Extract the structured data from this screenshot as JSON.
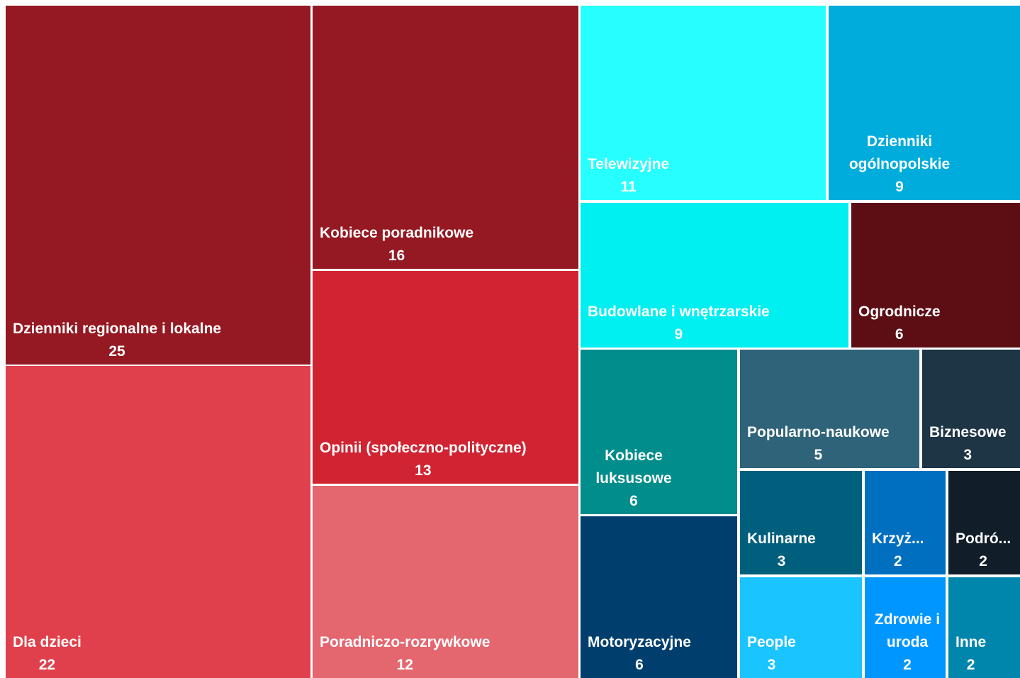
{
  "chart_data": {
    "type": "treemap",
    "categories": [
      "Dzienniki regionalne i lokalne",
      "Dla dzieci",
      "Kobiece poradnikowe",
      "Opinii (społeczno-polityczne)",
      "Poradniczo-rozrywkowe",
      "Telewizyjne",
      "Dzienniki ogólnopolskie",
      "Budowlane i wnętrzarskie",
      "Ogrodnicze",
      "Kobiece luksusowe",
      "Motoryzacyjne",
      "Popularno-naukowe",
      "Biznesowe",
      "Kulinarne",
      "Krzyż...",
      "Podró...",
      "People",
      "Zdrowie i uroda",
      "Inne"
    ],
    "values": [
      25,
      22,
      16,
      13,
      12,
      11,
      9,
      9,
      6,
      6,
      6,
      5,
      3,
      3,
      2,
      2,
      3,
      2,
      2
    ],
    "colors": [
      "#951922",
      "#e0404b",
      "#951922",
      "#d02432",
      "#e4666f",
      "#27feff",
      "#00acdc",
      "#00eff0",
      "#5d0e15",
      "#008d8c",
      "#003f6d",
      "#2f6379",
      "#1d3545",
      "#005f7c",
      "#006fc0",
      "#111e29",
      "#1ac4fe",
      "#0096ff",
      "#0086ad"
    ]
  }
}
